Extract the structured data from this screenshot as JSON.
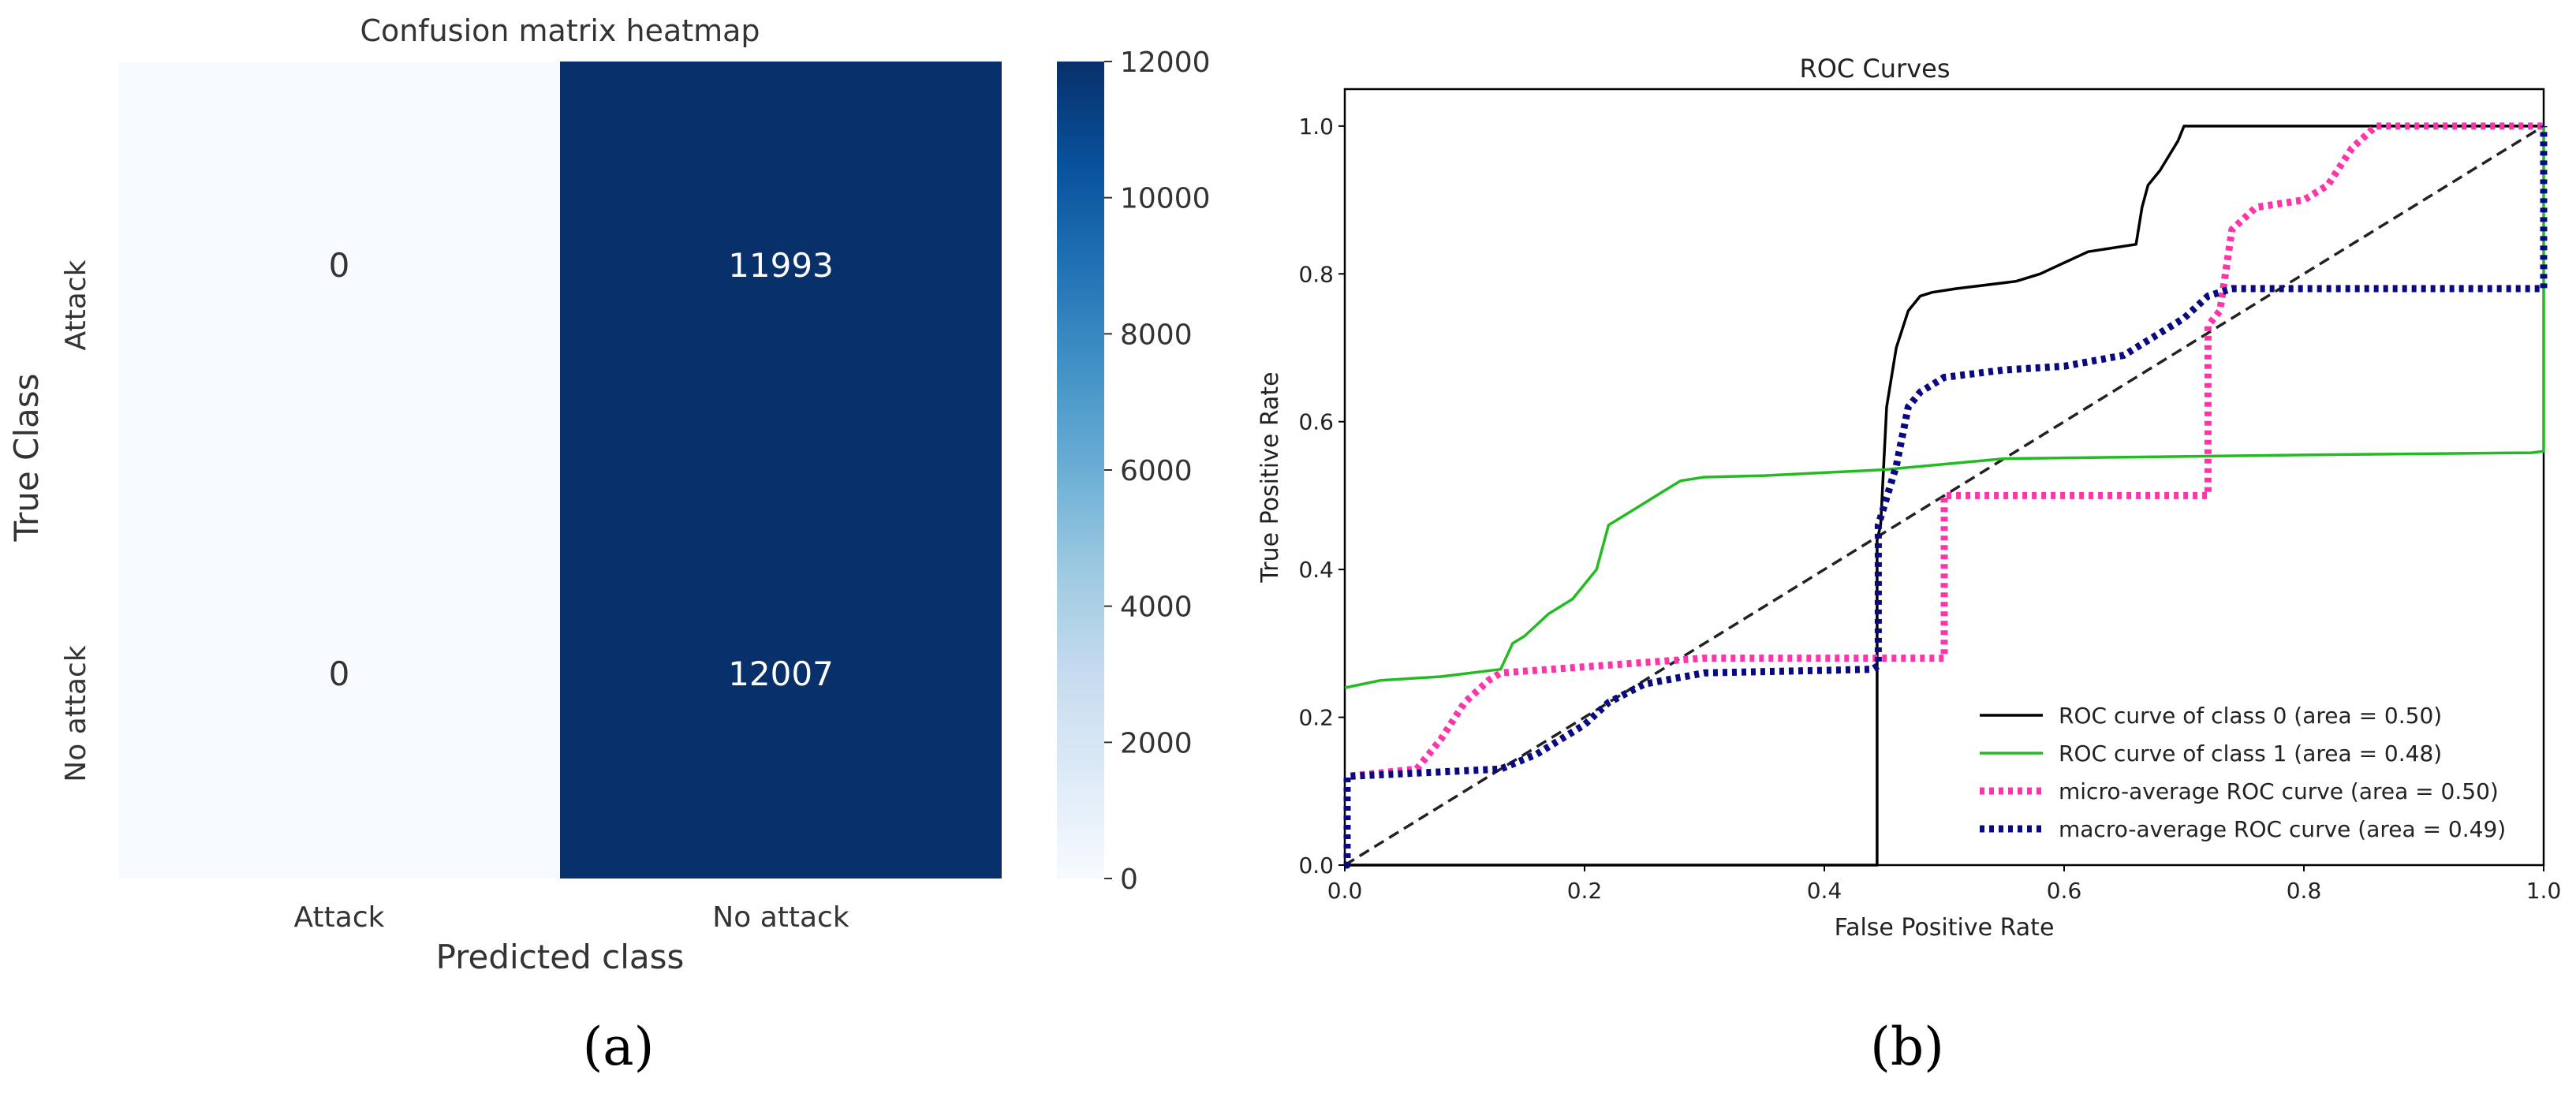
{
  "panels": {
    "a_label": "(a)",
    "b_label": "(b)"
  },
  "chart_data": [
    {
      "type": "heatmap",
      "title": "Confusion matrix heatmap",
      "xlabel": "Predicted class",
      "ylabel": "True Class",
      "x_categories": [
        "Attack",
        "No attack"
      ],
      "y_categories": [
        "Attack",
        "No attack"
      ],
      "values": [
        [
          0,
          11993
        ],
        [
          0,
          12007
        ]
      ],
      "colorbar": {
        "range": [
          0,
          12000
        ],
        "ticks": [
          0,
          2000,
          4000,
          6000,
          8000,
          10000,
          12000
        ],
        "colormap": "Blues",
        "low_color": "#f7fbff",
        "high_color": "#08306b"
      },
      "cell_text_colors": {
        "light": "#333333",
        "dark": "#ffffff"
      }
    },
    {
      "type": "line",
      "title": "ROC Curves",
      "xlabel": "False Positive Rate",
      "ylabel": "True Positive Rate",
      "xlim": [
        0,
        1
      ],
      "ylim": [
        0,
        1.05
      ],
      "xticks": [
        0.0,
        0.2,
        0.4,
        0.6,
        0.8,
        1.0
      ],
      "yticks": [
        0.0,
        0.2,
        0.4,
        0.6,
        0.8,
        1.0
      ],
      "grid": false,
      "legend_position": "lower-right",
      "series": [
        {
          "name": "ROC curve of class 0 (area = 0.50)",
          "color": "#000000",
          "style": "solid",
          "x": [
            0,
            0.444,
            0.444,
            0.447,
            0.452,
            0.46,
            0.47,
            0.48,
            0.49,
            0.51,
            0.56,
            0.58,
            0.6,
            0.62,
            0.64,
            0.66,
            0.665,
            0.67,
            0.68,
            0.695,
            0.7,
            1.0,
            1.0
          ],
          "y": [
            0,
            0,
            0.44,
            0.46,
            0.62,
            0.7,
            0.75,
            0.77,
            0.775,
            0.78,
            0.79,
            0.8,
            0.815,
            0.83,
            0.835,
            0.84,
            0.89,
            0.92,
            0.94,
            0.98,
            1.0,
            1.0,
            1.0
          ]
        },
        {
          "name": "ROC curve of class 1 (area = 0.48)",
          "color": "#22bb22",
          "style": "solid",
          "x": [
            0,
            0.03,
            0.08,
            0.13,
            0.14,
            0.15,
            0.17,
            0.19,
            0.21,
            0.22,
            0.24,
            0.26,
            0.28,
            0.3,
            0.35,
            0.45,
            0.55,
            0.65,
            0.8,
            0.99,
            1.0,
            1.0
          ],
          "y": [
            0.24,
            0.25,
            0.255,
            0.265,
            0.3,
            0.31,
            0.34,
            0.36,
            0.4,
            0.46,
            0.48,
            0.5,
            0.52,
            0.525,
            0.527,
            0.535,
            0.55,
            0.552,
            0.555,
            0.558,
            0.56,
            1.0
          ]
        },
        {
          "name": "micro-average ROC curve (area = 0.50)",
          "color": "#ff33aa",
          "style": "dotted",
          "x": [
            0,
            0.002,
            0.002,
            0.06,
            0.08,
            0.1,
            0.12,
            0.13,
            0.3,
            0.5,
            0.5,
            0.72,
            0.72,
            0.73,
            0.74,
            0.76,
            0.8,
            0.82,
            0.84,
            0.86,
            0.87,
            1.0
          ],
          "y": [
            0,
            0,
            0.12,
            0.13,
            0.17,
            0.22,
            0.25,
            0.26,
            0.28,
            0.28,
            0.5,
            0.5,
            0.73,
            0.75,
            0.86,
            0.89,
            0.9,
            0.92,
            0.97,
            1.0,
            1.0,
            1.0
          ]
        },
        {
          "name": "macro-average ROC curve (area = 0.49)",
          "color": "#0a0a80",
          "style": "dotted",
          "x": [
            0,
            0.002,
            0.002,
            0.13,
            0.16,
            0.2,
            0.22,
            0.25,
            0.3,
            0.44,
            0.445,
            0.445,
            0.46,
            0.47,
            0.48,
            0.5,
            0.55,
            0.6,
            0.65,
            0.7,
            0.72,
            0.74,
            0.99,
            1.0,
            1.0
          ],
          "y": [
            0,
            0,
            0.12,
            0.13,
            0.15,
            0.19,
            0.22,
            0.245,
            0.26,
            0.265,
            0.27,
            0.46,
            0.54,
            0.62,
            0.64,
            0.66,
            0.67,
            0.675,
            0.69,
            0.74,
            0.77,
            0.78,
            0.78,
            0.78,
            1.0
          ]
        }
      ],
      "reference_line": {
        "x": [
          0,
          1
        ],
        "y": [
          0,
          1
        ],
        "color": "#222222",
        "style": "dashed"
      }
    }
  ]
}
